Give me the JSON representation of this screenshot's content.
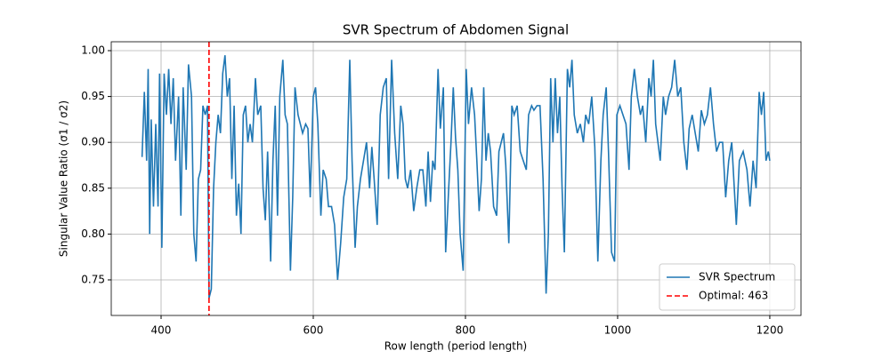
{
  "chart_data": {
    "type": "line",
    "title": "SVR Spectrum of Abdomen Signal",
    "xlabel": "Row length (period length)",
    "ylabel": "Singular Value Ratio (σ1 / σ2)",
    "x": [
      375,
      378,
      381,
      383,
      385,
      387,
      390,
      393,
      396,
      398,
      401,
      404,
      407,
      410,
      413,
      416,
      419,
      423,
      426,
      429,
      433,
      436,
      440,
      443,
      446,
      449,
      452,
      455,
      458,
      461,
      463,
      466,
      469,
      472,
      475,
      478,
      481,
      484,
      487,
      490,
      493,
      496,
      499,
      502,
      505,
      508,
      511,
      514,
      517,
      520,
      524,
      527,
      531,
      534,
      537,
      540,
      544,
      547,
      550,
      553,
      556,
      560,
      563,
      566,
      570,
      573,
      576,
      580,
      583,
      586,
      590,
      593,
      596,
      600,
      603,
      606,
      610,
      613,
      617,
      620,
      624,
      628,
      632,
      636,
      640,
      644,
      648,
      651,
      655,
      658,
      662,
      666,
      670,
      674,
      677,
      680,
      684,
      688,
      692,
      696,
      699,
      703,
      707,
      711,
      715,
      718,
      721,
      724,
      728,
      732,
      736,
      740,
      744,
      748,
      751,
      754,
      757,
      760,
      764,
      767,
      771,
      774,
      778,
      781,
      784,
      787,
      790,
      793,
      797,
      801,
      804,
      808,
      812,
      815,
      818,
      821,
      824,
      827,
      830,
      833,
      837,
      841,
      844,
      847,
      850,
      853,
      857,
      861,
      864,
      868,
      872,
      876,
      880,
      883,
      887,
      890,
      894,
      898,
      902,
      906,
      909,
      912,
      915,
      918,
      921,
      924,
      927,
      930,
      934,
      937,
      940,
      943,
      947,
      951,
      955,
      958,
      962,
      966,
      970,
      974,
      978,
      981,
      985,
      988,
      992,
      996,
      999,
      1003,
      1007,
      1011,
      1015,
      1018,
      1022,
      1026,
      1030,
      1033,
      1037,
      1041,
      1044,
      1047,
      1050,
      1053,
      1056,
      1060,
      1063,
      1067,
      1071,
      1075,
      1079,
      1083,
      1087,
      1091,
      1094,
      1098,
      1102,
      1106,
      1110,
      1114,
      1118,
      1122,
      1126,
      1130,
      1134,
      1138,
      1142,
      1146,
      1150,
      1156,
      1160,
      1165,
      1170,
      1174,
      1178,
      1182,
      1186,
      1189,
      1192,
      1195,
      1198,
      1200
    ],
    "series": [
      {
        "name": "SVR Spectrum",
        "color": "#1f77b4",
        "values": [
          0.884,
          0.955,
          0.88,
          0.98,
          0.8,
          0.925,
          0.83,
          0.92,
          0.83,
          0.975,
          0.785,
          0.975,
          0.93,
          0.98,
          0.92,
          0.97,
          0.88,
          0.95,
          0.82,
          0.96,
          0.87,
          0.985,
          0.95,
          0.8,
          0.77,
          0.86,
          0.87,
          0.94,
          0.93,
          0.94,
          0.73,
          0.74,
          0.85,
          0.9,
          0.93,
          0.91,
          0.975,
          0.995,
          0.95,
          0.97,
          0.86,
          0.94,
          0.82,
          0.855,
          0.8,
          0.93,
          0.94,
          0.9,
          0.92,
          0.9,
          0.97,
          0.93,
          0.94,
          0.85,
          0.815,
          0.89,
          0.77,
          0.88,
          0.94,
          0.82,
          0.95,
          0.99,
          0.93,
          0.92,
          0.76,
          0.84,
          0.96,
          0.93,
          0.92,
          0.91,
          0.92,
          0.915,
          0.84,
          0.95,
          0.96,
          0.92,
          0.82,
          0.87,
          0.86,
          0.83,
          0.83,
          0.81,
          0.75,
          0.79,
          0.84,
          0.86,
          0.99,
          0.88,
          0.785,
          0.83,
          0.86,
          0.88,
          0.9,
          0.85,
          0.895,
          0.86,
          0.81,
          0.93,
          0.96,
          0.97,
          0.86,
          0.99,
          0.91,
          0.86,
          0.94,
          0.92,
          0.86,
          0.85,
          0.87,
          0.825,
          0.85,
          0.87,
          0.87,
          0.83,
          0.89,
          0.835,
          0.88,
          0.87,
          0.98,
          0.915,
          0.96,
          0.78,
          0.85,
          0.9,
          0.96,
          0.905,
          0.87,
          0.8,
          0.76,
          0.98,
          0.92,
          0.96,
          0.93,
          0.88,
          0.825,
          0.86,
          0.96,
          0.88,
          0.91,
          0.89,
          0.83,
          0.82,
          0.89,
          0.9,
          0.91,
          0.875,
          0.79,
          0.94,
          0.93,
          0.94,
          0.89,
          0.88,
          0.87,
          0.93,
          0.94,
          0.935,
          0.94,
          0.94,
          0.86,
          0.735,
          0.8,
          0.97,
          0.9,
          0.97,
          0.91,
          0.95,
          0.85,
          0.78,
          0.98,
          0.96,
          0.99,
          0.93,
          0.91,
          0.92,
          0.9,
          0.93,
          0.92,
          0.95,
          0.895,
          0.77,
          0.88,
          0.93,
          0.96,
          0.89,
          0.78,
          0.77,
          0.93,
          0.94,
          0.93,
          0.92,
          0.87,
          0.95,
          0.98,
          0.95,
          0.93,
          0.94,
          0.9,
          0.97,
          0.95,
          0.99,
          0.92,
          0.9,
          0.88,
          0.95,
          0.93,
          0.95,
          0.96,
          0.99,
          0.95,
          0.96,
          0.9,
          0.87,
          0.915,
          0.93,
          0.91,
          0.89,
          0.935,
          0.92,
          0.93,
          0.96,
          0.92,
          0.89,
          0.9,
          0.9,
          0.84,
          0.88,
          0.9,
          0.81,
          0.88,
          0.89,
          0.87,
          0.83,
          0.88,
          0.85,
          0.955,
          0.93,
          0.955,
          0.88,
          0.89,
          0.88
        ]
      }
    ],
    "vlines": [
      {
        "x": 463,
        "name": "Optimal: 463",
        "color": "#ff0000"
      }
    ],
    "xlim": [
      334.5,
      1241
    ],
    "ylim": [
      0.7112,
      1.0097
    ],
    "xticks": [
      400,
      600,
      800,
      1000,
      1200
    ],
    "yticks": [
      0.75,
      {
        "value": 0.8,
        "label": "0.80"
      },
      0.85,
      {
        "value": 0.9,
        "label": "0.90"
      },
      0.95,
      {
        "value": 1.0,
        "label": "1.00"
      }
    ],
    "grid": true,
    "legend": "lower right"
  }
}
